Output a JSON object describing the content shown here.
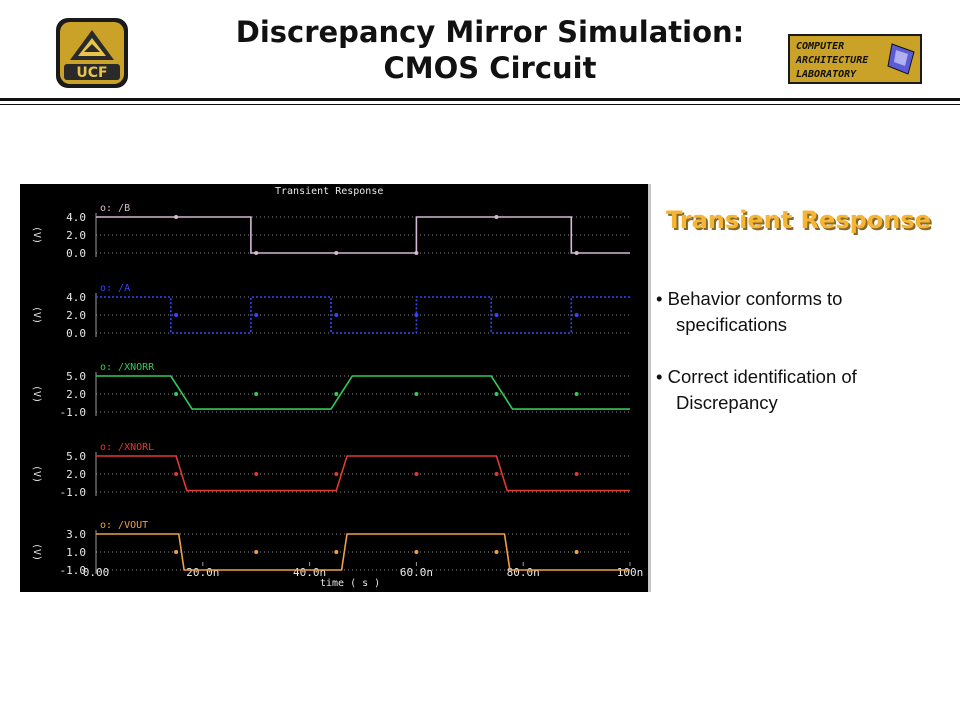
{
  "slide": {
    "title_line1": "Discrepancy Mirror Simulation:",
    "title_line2": "CMOS Circuit",
    "logo_left_text": "UCF",
    "logo_right_lines": [
      "COMPUTER",
      "ARCHITECTURE",
      "LABORATORY"
    ]
  },
  "plot": {
    "title": "Transient Response",
    "x_axis_label": "time ( s )",
    "x_ticks": [
      "0.00",
      "20.0n",
      "40.0n",
      "60.0n",
      "80.0n",
      "100n"
    ],
    "unit_label": "(V)",
    "panels": [
      {
        "name": "/B",
        "prefix": "o:",
        "ticks": [
          "4.0",
          "2.0",
          "0.0"
        ],
        "color": "#d6b8d6"
      },
      {
        "name": "/A",
        "prefix": "o:",
        "ticks": [
          "4.0",
          "2.0",
          "0.0"
        ],
        "color": "#3347ff"
      },
      {
        "name": "/XNORR",
        "prefix": "o:",
        "ticks": [
          "5.0",
          "2.0",
          "-1.0"
        ],
        "color": "#33cc55"
      },
      {
        "name": "/XNORL",
        "prefix": "o:",
        "ticks": [
          "5.0",
          "2.0",
          "-1.0"
        ],
        "color": "#e03a2c"
      },
      {
        "name": "/VOUT",
        "prefix": "o:",
        "ticks": [
          "3.0",
          "1.0",
          "-1.0"
        ],
        "color": "#f0a04a"
      }
    ]
  },
  "side": {
    "heading": "Transient Response",
    "bullets": [
      {
        "line1": "• Behavior conforms to",
        "line2": "specifications"
      },
      {
        "line1": "• Correct identification of",
        "line2": "Discrepancy"
      }
    ]
  },
  "colors": {
    "heading": "#f7b534",
    "plot_background": "#000000",
    "grid": "#8a8a8a",
    "axis_text": "#e8e8e8"
  }
}
